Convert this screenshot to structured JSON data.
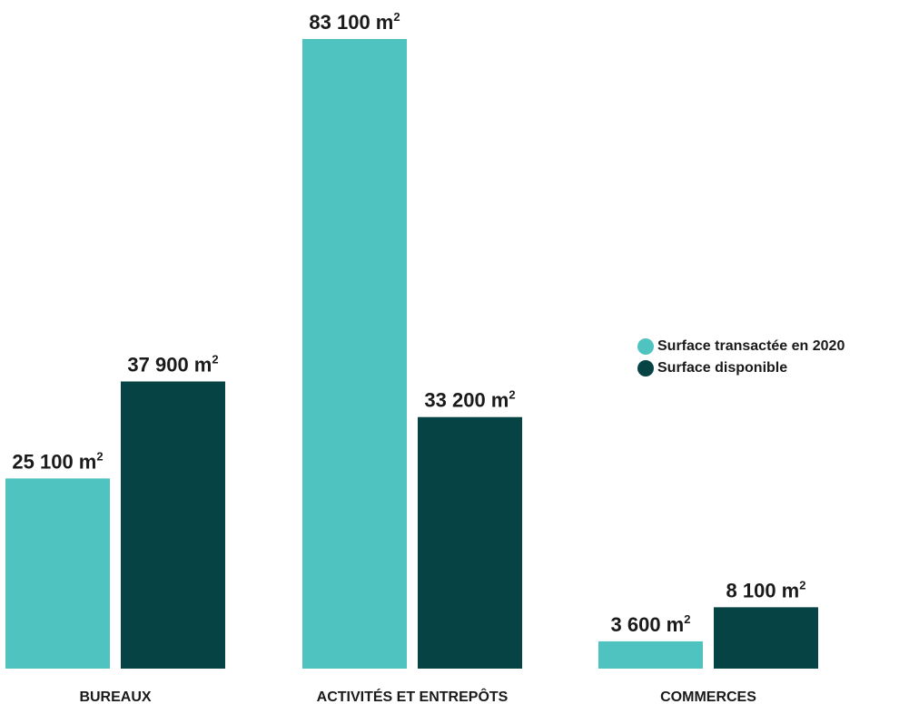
{
  "chart_data": {
    "type": "bar",
    "title": "",
    "xlabel": "",
    "ylabel": "",
    "categories": [
      "BUREAUX",
      "ACTIVITÉS ET ENTREPÔTS",
      "COMMERCES"
    ],
    "series": [
      {
        "name": "Surface transactée en 2020",
        "values": [
          25100,
          83100,
          3600
        ],
        "labels": [
          "25 100 m",
          "83 100 m",
          "3 600 m"
        ],
        "color": "#4fc3c0"
      },
      {
        "name": "Surface disponible",
        "values": [
          37900,
          33200,
          8100
        ],
        "labels": [
          "37 900 m",
          "33 200 m",
          "8 100 m"
        ],
        "color": "#064345"
      }
    ],
    "unit_superscript": "2",
    "ylim": [
      0,
      83100
    ],
    "grid": false,
    "legend_position": "right"
  }
}
